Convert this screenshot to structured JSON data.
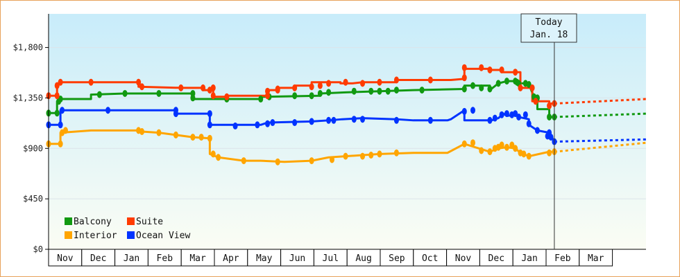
{
  "chart_data": {
    "type": "line",
    "y_ticks": [
      "$1,800",
      "$1,350",
      "$900",
      "$450",
      "$0"
    ],
    "y_tick_values": [
      1800,
      1350,
      900,
      450,
      0
    ],
    "ylim": [
      0,
      2100
    ],
    "months": [
      "Nov",
      "Dec",
      "Jan",
      "Feb",
      "Mar",
      "Apr",
      "May",
      "Jun",
      "Jul",
      "Aug",
      "Sep",
      "Oct",
      "Nov",
      "Dec",
      "Jan",
      "Feb",
      "Mar"
    ],
    "today": {
      "line1": "Today",
      "line2": "Jan. 18",
      "x": 293
    },
    "x_range": [
      -5,
      347
    ],
    "series": [
      {
        "name": "Balcony",
        "color": "#119911",
        "values": [
          [
            -5,
            1215
          ],
          [
            0,
            1215
          ],
          [
            0,
            1320
          ],
          [
            2,
            1340
          ],
          [
            20,
            1340
          ],
          [
            20,
            1380
          ],
          [
            40,
            1390
          ],
          [
            80,
            1390
          ],
          [
            80,
            1340
          ],
          [
            120,
            1340
          ],
          [
            120,
            1360
          ],
          [
            155,
            1370
          ],
          [
            155,
            1390
          ],
          [
            170,
            1400
          ],
          [
            190,
            1410
          ],
          [
            210,
            1420
          ],
          [
            240,
            1430
          ],
          [
            240,
            1430
          ],
          [
            240,
            1460
          ],
          [
            255,
            1460
          ],
          [
            255,
            1420
          ],
          [
            260,
            1480
          ],
          [
            265,
            1500
          ],
          [
            270,
            1500
          ],
          [
            272,
            1480
          ],
          [
            276,
            1480
          ],
          [
            278,
            1470
          ],
          [
            281,
            1360
          ],
          [
            283,
            1350
          ],
          [
            283,
            1250
          ],
          [
            290,
            1250
          ],
          [
            290,
            1180
          ],
          [
            293,
            1180
          ]
        ],
        "dots": [
          [
            -5,
            1215
          ],
          [
            0,
            1215
          ],
          [
            1,
            1320
          ],
          [
            2,
            1340
          ],
          [
            25,
            1380
          ],
          [
            40,
            1390
          ],
          [
            60,
            1390
          ],
          [
            80,
            1390
          ],
          [
            80,
            1350
          ],
          [
            100,
            1340
          ],
          [
            120,
            1340
          ],
          [
            125,
            1360
          ],
          [
            140,
            1370
          ],
          [
            150,
            1370
          ],
          [
            155,
            1390
          ],
          [
            160,
            1400
          ],
          [
            175,
            1410
          ],
          [
            185,
            1410
          ],
          [
            190,
            1410
          ],
          [
            195,
            1410
          ],
          [
            200,
            1420
          ],
          [
            215,
            1420
          ],
          [
            240,
            1430
          ],
          [
            245,
            1460
          ],
          [
            250,
            1440
          ],
          [
            255,
            1430
          ],
          [
            260,
            1480
          ],
          [
            265,
            1500
          ],
          [
            270,
            1500
          ],
          [
            271,
            1490
          ],
          [
            272,
            1480
          ],
          [
            276,
            1480
          ],
          [
            278,
            1470
          ],
          [
            281,
            1360
          ],
          [
            283,
            1350
          ],
          [
            290,
            1180
          ],
          [
            293,
            1180
          ]
        ],
        "projection": [
          [
            293,
            1180
          ],
          [
            347,
            1210
          ]
        ]
      },
      {
        "name": "Suite",
        "color": "#ff3b00",
        "values": [
          [
            -5,
            1370
          ],
          [
            0,
            1370
          ],
          [
            0,
            1460
          ],
          [
            2,
            1490
          ],
          [
            48,
            1490
          ],
          [
            48,
            1450
          ],
          [
            73,
            1440
          ],
          [
            86,
            1440
          ],
          [
            86,
            1420
          ],
          [
            90,
            1420
          ],
          [
            92,
            1440
          ],
          [
            92,
            1360
          ],
          [
            100,
            1360
          ],
          [
            100,
            1370
          ],
          [
            124,
            1370
          ],
          [
            124,
            1420
          ],
          [
            130,
            1420
          ],
          [
            130,
            1440
          ],
          [
            140,
            1440
          ],
          [
            140,
            1460
          ],
          [
            150,
            1460
          ],
          [
            150,
            1490
          ],
          [
            167,
            1490
          ],
          [
            167,
            1480
          ],
          [
            174,
            1480
          ],
          [
            180,
            1490
          ],
          [
            200,
            1490
          ],
          [
            200,
            1510
          ],
          [
            232,
            1510
          ],
          [
            240,
            1520
          ],
          [
            240,
            1610
          ],
          [
            255,
            1610
          ],
          [
            255,
            1600
          ],
          [
            262,
            1600
          ],
          [
            262,
            1580
          ],
          [
            273,
            1580
          ],
          [
            273,
            1440
          ],
          [
            280,
            1440
          ],
          [
            280,
            1320
          ],
          [
            290,
            1320
          ],
          [
            290,
            1300
          ],
          [
            293,
            1300
          ]
        ],
        "dots": [
          [
            -5,
            1370
          ],
          [
            0,
            1370
          ],
          [
            0,
            1460
          ],
          [
            2,
            1490
          ],
          [
            20,
            1490
          ],
          [
            48,
            1490
          ],
          [
            50,
            1450
          ],
          [
            73,
            1440
          ],
          [
            86,
            1440
          ],
          [
            90,
            1420
          ],
          [
            92,
            1440
          ],
          [
            92,
            1370
          ],
          [
            100,
            1360
          ],
          [
            124,
            1370
          ],
          [
            124,
            1410
          ],
          [
            130,
            1420
          ],
          [
            130,
            1430
          ],
          [
            140,
            1440
          ],
          [
            150,
            1450
          ],
          [
            155,
            1460
          ],
          [
            160,
            1480
          ],
          [
            170,
            1490
          ],
          [
            180,
            1480
          ],
          [
            190,
            1490
          ],
          [
            200,
            1510
          ],
          [
            220,
            1510
          ],
          [
            240,
            1530
          ],
          [
            240,
            1620
          ],
          [
            250,
            1620
          ],
          [
            255,
            1600
          ],
          [
            262,
            1600
          ],
          [
            270,
            1580
          ],
          [
            273,
            1440
          ],
          [
            280,
            1440
          ],
          [
            282,
            1320
          ],
          [
            290,
            1280
          ],
          [
            293,
            1300
          ]
        ],
        "projection": [
          [
            293,
            1300
          ],
          [
            347,
            1340
          ]
        ]
      },
      {
        "name": "Ocean View",
        "color": "#0033ff",
        "values": [
          [
            -5,
            1110
          ],
          [
            2,
            1110
          ],
          [
            2,
            1240
          ],
          [
            70,
            1240
          ],
          [
            70,
            1210
          ],
          [
            90,
            1210
          ],
          [
            90,
            1110
          ],
          [
            110,
            1110
          ],
          [
            120,
            1110
          ],
          [
            124,
            1130
          ],
          [
            150,
            1140
          ],
          [
            160,
            1150
          ],
          [
            168,
            1160
          ],
          [
            180,
            1170
          ],
          [
            200,
            1160
          ],
          [
            210,
            1150
          ],
          [
            230,
            1150
          ],
          [
            232,
            1160
          ],
          [
            240,
            1240
          ],
          [
            240,
            1150
          ],
          [
            256,
            1150
          ],
          [
            260,
            1170
          ],
          [
            263,
            1210
          ],
          [
            265,
            1190
          ],
          [
            270,
            1200
          ],
          [
            272,
            1180
          ],
          [
            278,
            1160
          ],
          [
            278,
            1110
          ],
          [
            283,
            1060
          ],
          [
            290,
            1040
          ],
          [
            293,
            960
          ]
        ],
        "dots": [
          [
            -5,
            1110
          ],
          [
            2,
            1110
          ],
          [
            3,
            1240
          ],
          [
            30,
            1240
          ],
          [
            70,
            1240
          ],
          [
            70,
            1210
          ],
          [
            90,
            1210
          ],
          [
            90,
            1110
          ],
          [
            105,
            1100
          ],
          [
            118,
            1110
          ],
          [
            124,
            1120
          ],
          [
            127,
            1130
          ],
          [
            140,
            1130
          ],
          [
            150,
            1140
          ],
          [
            160,
            1150
          ],
          [
            163,
            1150
          ],
          [
            175,
            1160
          ],
          [
            180,
            1160
          ],
          [
            200,
            1150
          ],
          [
            220,
            1150
          ],
          [
            240,
            1230
          ],
          [
            245,
            1240
          ],
          [
            255,
            1150
          ],
          [
            258,
            1170
          ],
          [
            262,
            1200
          ],
          [
            265,
            1210
          ],
          [
            268,
            1200
          ],
          [
            270,
            1210
          ],
          [
            272,
            1180
          ],
          [
            276,
            1200
          ],
          [
            278,
            1120
          ],
          [
            283,
            1060
          ],
          [
            289,
            1010
          ],
          [
            290,
            1040
          ],
          [
            291,
            1000
          ],
          [
            293,
            960
          ]
        ],
        "projection": [
          [
            293,
            960
          ],
          [
            347,
            980
          ]
        ]
      },
      {
        "name": "Interior",
        "color": "#ffa500",
        "values": [
          [
            -5,
            940
          ],
          [
            2,
            940
          ],
          [
            2,
            1040
          ],
          [
            20,
            1060
          ],
          [
            48,
            1060
          ],
          [
            50,
            1050
          ],
          [
            60,
            1040
          ],
          [
            70,
            1020
          ],
          [
            80,
            1000
          ],
          [
            90,
            990
          ],
          [
            90,
            850
          ],
          [
            95,
            820
          ],
          [
            110,
            790
          ],
          [
            120,
            790
          ],
          [
            134,
            780
          ],
          [
            150,
            790
          ],
          [
            160,
            820
          ],
          [
            170,
            830
          ],
          [
            190,
            850
          ],
          [
            210,
            860
          ],
          [
            230,
            860
          ],
          [
            240,
            940
          ],
          [
            255,
            870
          ],
          [
            260,
            900
          ],
          [
            265,
            910
          ],
          [
            270,
            900
          ],
          [
            273,
            860
          ],
          [
            278,
            830
          ],
          [
            290,
            870
          ],
          [
            293,
            870
          ]
        ],
        "dots": [
          [
            -5,
            940
          ],
          [
            2,
            940
          ],
          [
            3,
            1040
          ],
          [
            5,
            1060
          ],
          [
            48,
            1060
          ],
          [
            50,
            1050
          ],
          [
            60,
            1040
          ],
          [
            70,
            1020
          ],
          [
            80,
            1000
          ],
          [
            85,
            1000
          ],
          [
            90,
            990
          ],
          [
            92,
            850
          ],
          [
            95,
            820
          ],
          [
            110,
            790
          ],
          [
            130,
            780
          ],
          [
            150,
            790
          ],
          [
            162,
            800
          ],
          [
            170,
            830
          ],
          [
            180,
            830
          ],
          [
            185,
            840
          ],
          [
            190,
            850
          ],
          [
            200,
            860
          ],
          [
            240,
            940
          ],
          [
            245,
            950
          ],
          [
            250,
            880
          ],
          [
            255,
            870
          ],
          [
            258,
            900
          ],
          [
            260,
            910
          ],
          [
            262,
            930
          ],
          [
            265,
            910
          ],
          [
            268,
            930
          ],
          [
            270,
            900
          ],
          [
            273,
            860
          ],
          [
            275,
            850
          ],
          [
            278,
            830
          ],
          [
            290,
            860
          ],
          [
            293,
            870
          ]
        ],
        "projection": [
          [
            293,
            870
          ],
          [
            347,
            950
          ]
        ]
      }
    ],
    "legend": [
      {
        "name": "Balcony",
        "color": "#119911"
      },
      {
        "name": "Suite",
        "color": "#ff3b00"
      },
      {
        "name": "Interior",
        "color": "#ffa500"
      },
      {
        "name": "Ocean View",
        "color": "#0033ff"
      }
    ]
  }
}
